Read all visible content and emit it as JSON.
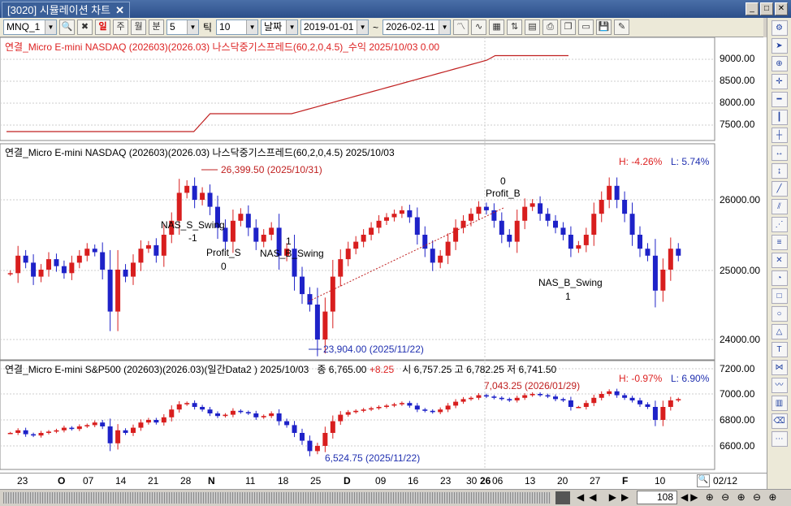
{
  "window": {
    "tab_title": "[3020] 시뮬레이션 차트",
    "close": "✕"
  },
  "toolbar": {
    "symbol": "MNQ_1",
    "period_btns": [
      "일",
      "주",
      "월",
      "분"
    ],
    "minute_value": "5",
    "tick_label": "틱",
    "tick_value": "10",
    "date_label": "날짜",
    "start_date": "2019-01-01",
    "tilde": "~",
    "end_date": "2026-02-11"
  },
  "panel1": {
    "title": "연결_Micro E-mini NASDAQ (202603)(2026.03) 나스닥중기스프레드(60,2,0,4.5)_수익 2025/10/03 0.00",
    "ticks": [
      "9000.00",
      "8500.00",
      "8000.00",
      "7500.00"
    ]
  },
  "panel2": {
    "title": "연결_Micro E-mini NASDAQ (202603)(2026.03) 나스닥중기스프레드(60,2,0,4.5)   2025/10/03",
    "hi": "H: -4.26%",
    "lo": "L: 5.74%",
    "ticks": [
      "26000.00",
      "25000.00",
      "24000.00"
    ],
    "ann_high": "26,399.50 (2025/10/31)",
    "ann_low": "23,904.00 (2025/11/22)",
    "nas_s": "NAS_S_Swing",
    "nas_s_n": "-1",
    "profit_s": "Profit_S",
    "profit_s_n": "0",
    "nas_b1": "NAS_B_Swing",
    "nas_b1_n": "1",
    "profit_b": "Profit_B",
    "profit_b_n": "0",
    "nas_b2": "NAS_B_Swing",
    "nas_b2_n": "1"
  },
  "panel3": {
    "title": "연결_Micro E-mini S&P500 (202603)(2026.03)(일간Data2 )  2025/10/03",
    "close_label": "종",
    "close": "6,765.00",
    "chg": "+8.25",
    "open_label": "시",
    "open": "6,757.25",
    "high_label": "고",
    "high": "6,782.25",
    "low_label": "저",
    "low": "6,741.50",
    "hi": "H: -0.97%",
    "lo": "L: 6.90%",
    "ticks": [
      "7200.00",
      "7000.00",
      "6800.00",
      "6600.00"
    ],
    "ann_high": "7,043.25 (2026/01/29)",
    "ann_low": "6,524.75 (2025/11/22)"
  },
  "xaxis": [
    "23",
    "O",
    "07",
    "14",
    "21",
    "28",
    "N",
    "11",
    "18",
    "25",
    "D",
    "09",
    "16",
    "23",
    "30",
    "26",
    "06",
    "13",
    "20",
    "27",
    "F",
    "10"
  ],
  "bottom": {
    "date": "02/12",
    "count": "108"
  },
  "colors": {
    "up": "#d81e1e",
    "down": "#1e22c8",
    "equity": "#1e2a8a"
  },
  "chart_data": {
    "type": "candlestick",
    "equity_curve": [
      7400,
      7400,
      7400,
      7400,
      7400,
      7400,
      7400,
      7400,
      7400,
      7400,
      7400,
      7400,
      7400,
      7400,
      7400,
      7400,
      7400,
      7400,
      7400,
      7400,
      7400,
      7400,
      7400,
      7400,
      7600,
      7800,
      7800,
      7800,
      7800,
      7800,
      7800,
      7800,
      7800,
      7800,
      7800,
      7800,
      7850,
      7900,
      7950,
      8000,
      8050,
      8100,
      8150,
      8200,
      8250,
      8300,
      8350,
      8400,
      8450,
      8500,
      8550,
      8600,
      8650,
      8700,
      8750,
      8800,
      8850,
      8900,
      8950,
      9000,
      9100,
      9100,
      9100,
      9100,
      9100,
      9100,
      9100,
      9100,
      9100,
      9100
    ],
    "nasdaq": [
      24950,
      25200,
      25100,
      24900,
      25000,
      25150,
      25050,
      24950,
      25100,
      25200,
      25300,
      25250,
      25000,
      24400,
      25000,
      24900,
      25100,
      25300,
      25350,
      25200,
      25500,
      25700,
      26100,
      26200,
      26000,
      26100,
      25900,
      25600,
      25400,
      25700,
      25800,
      25600,
      25400,
      25500,
      25600,
      25200,
      25300,
      24900,
      24650,
      24500,
      24000,
      24400,
      24900,
      25150,
      25300,
      25400,
      25500,
      25600,
      25700,
      25750,
      25800,
      25850,
      25750,
      25500,
      25300,
      25100,
      25200,
      25400,
      25600,
      25700,
      25800,
      25900,
      25850,
      25700,
      25500,
      25400,
      25700,
      25900,
      25950,
      25800,
      25700,
      25600,
      25500,
      25300,
      25350,
      25500,
      25800,
      26000,
      26200,
      26000,
      25800,
      25500,
      25300,
      25200,
      24700,
      25000,
      25300,
      25200
    ],
    "sp500": [
      6700,
      6720,
      6690,
      6680,
      6700,
      6710,
      6720,
      6740,
      6730,
      6750,
      6760,
      6780,
      6750,
      6620,
      6720,
      6700,
      6740,
      6780,
      6800,
      6780,
      6820,
      6880,
      6920,
      6930,
      6900,
      6880,
      6850,
      6830,
      6840,
      6870,
      6860,
      6850,
      6820,
      6830,
      6850,
      6790,
      6760,
      6700,
      6640,
      6560,
      6600,
      6700,
      6790,
      6840,
      6860,
      6870,
      6880,
      6890,
      6900,
      6910,
      6920,
      6930,
      6910,
      6880,
      6870,
      6860,
      6880,
      6910,
      6940,
      6960,
      6970,
      6990,
      6980,
      6970,
      6960,
      6950,
      6970,
      6990,
      7000,
      6990,
      6980,
      6960,
      6950,
      6900,
      6900,
      6930,
      6970,
      7000,
      7020,
      6990,
      6970,
      6950,
      6920,
      6900,
      6800,
      6900,
      6950,
      6960
    ]
  }
}
